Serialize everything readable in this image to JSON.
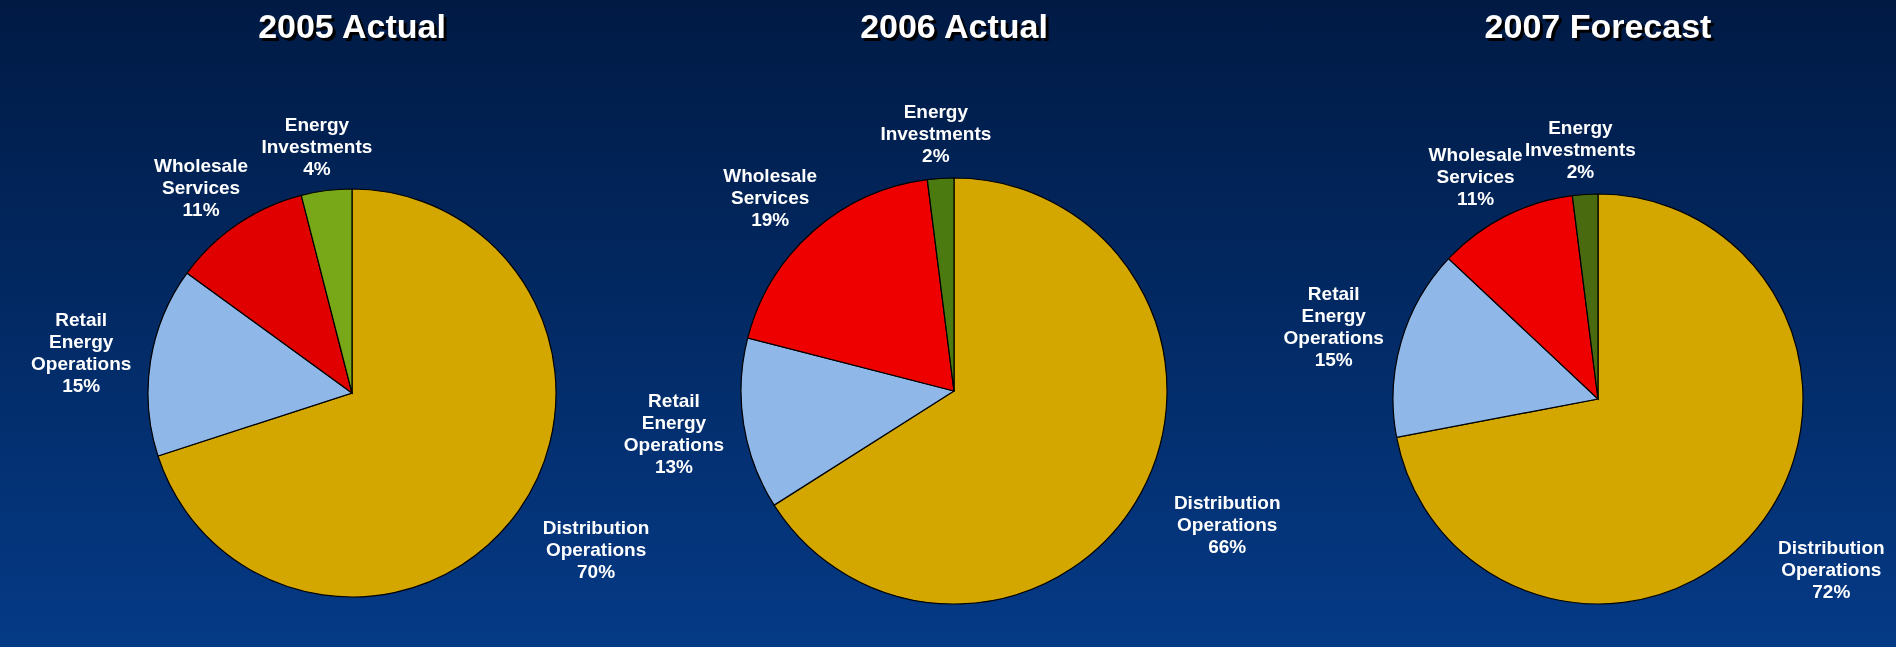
{
  "chart_data": [
    {
      "type": "pie",
      "title": "2005 Actual",
      "categories": [
        "Distribution Operations",
        "Retail Energy Operations",
        "Wholesale Services",
        "Energy Investments"
      ],
      "values": [
        70,
        15,
        11,
        4
      ],
      "value_labels": [
        "70%",
        "15%",
        "11%",
        "4%"
      ],
      "colors": [
        "#d4a600",
        "#8fb8e8",
        "#e00000",
        "#78a818"
      ]
    },
    {
      "type": "pie",
      "title": "2006 Actual",
      "categories": [
        "Distribution Operations",
        "Retail Energy Operations",
        "Wholesale Services",
        "Energy Investments"
      ],
      "values": [
        66,
        13,
        19,
        2
      ],
      "value_labels": [
        "66%",
        "13%",
        "19%",
        "2%"
      ],
      "colors": [
        "#d4a600",
        "#8fb8e8",
        "#ee0000",
        "#4a7a10"
      ]
    },
    {
      "type": "pie",
      "title": "2007 Forecast",
      "categories": [
        "Distribution Operations",
        "Retail Energy Operations",
        "Wholesale Services",
        "Energy Investments"
      ],
      "values": [
        72,
        15,
        11,
        2
      ],
      "value_labels": [
        "72%",
        "15%",
        "11%",
        "2%"
      ],
      "colors": [
        "#d4a600",
        "#8fb8e8",
        "#ee0000",
        "#4a6a10"
      ]
    }
  ]
}
